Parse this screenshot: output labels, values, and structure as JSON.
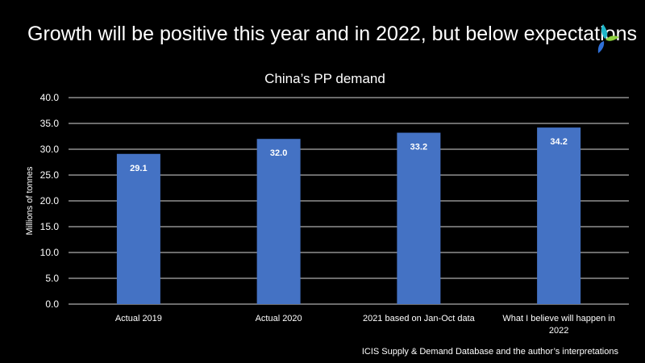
{
  "slide": {
    "title": "Growth will be positive this year and in 2022, but below expectations",
    "source": "ICIS Supply  & Demand Database and the author’s interpretations"
  },
  "logo": {
    "icon": "icis-logo-icon",
    "colors": [
      "#1fb7c9",
      "#2f6fd6",
      "#8ccf3e"
    ]
  },
  "chart_data": {
    "type": "bar",
    "title": "China’s PP demand",
    "xlabel": "",
    "ylabel": "Millions of tonnes",
    "categories": [
      "Actual 2019",
      "Actual 2020",
      "2021 based on Jan-Oct data",
      "What I believe will happen in 2022"
    ],
    "category_lines": [
      [
        "Actual 2019"
      ],
      [
        "Actual 2020"
      ],
      [
        "2021 based on Jan-Oct data"
      ],
      [
        "What I believe will happen in",
        "2022"
      ]
    ],
    "values": [
      29.1,
      32.0,
      33.2,
      34.2
    ],
    "data_labels": [
      "29.1",
      "32.0",
      "33.2",
      "34.2"
    ],
    "ylim": [
      0,
      40
    ],
    "yticks": [
      "0.0",
      "5.0",
      "10.0",
      "15.0",
      "20.0",
      "25.0",
      "30.0",
      "35.0",
      "40.0"
    ],
    "grid": true,
    "colors": {
      "bar": "#4472c4",
      "grid": "#d9d9d9",
      "text": "#ffffff"
    }
  }
}
